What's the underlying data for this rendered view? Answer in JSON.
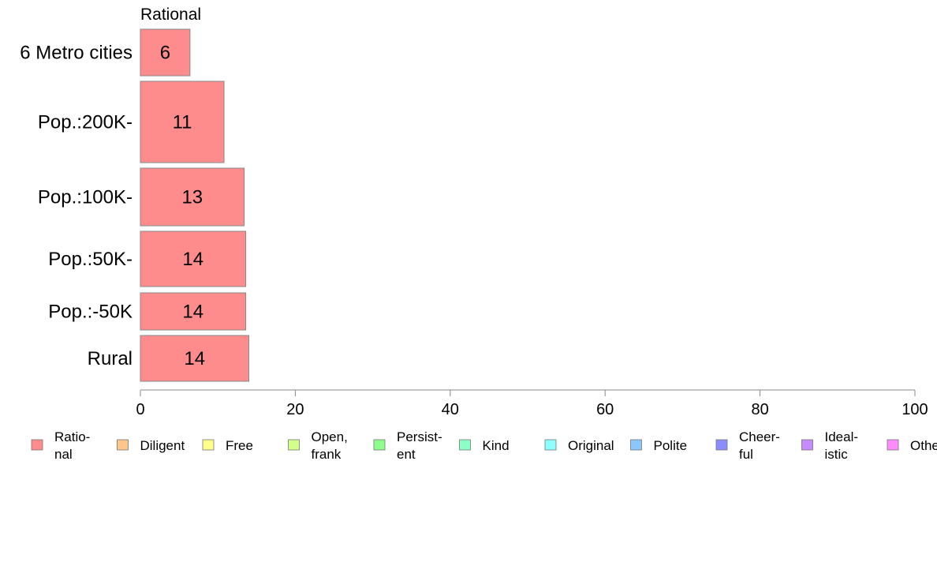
{
  "chart_data": {
    "type": "bar",
    "orientation": "horizontal",
    "series_title": "Rational",
    "categories": [
      "6 Metro cities",
      "Pop.:200K-",
      "Pop.:100K-",
      "Pop.:50K-",
      "Pop.:-50K",
      "Rural"
    ],
    "series": [
      {
        "name": "Rational",
        "values": [
          6.4,
          10.8,
          13.4,
          13.6,
          13.6,
          14.0
        ],
        "labels": [
          "6",
          "11",
          "13",
          "14",
          "14",
          "14"
        ]
      }
    ],
    "xlim": [
      0,
      100
    ],
    "xticks": [
      "0",
      "20",
      "40",
      "60",
      "80",
      "100"
    ],
    "grid": false,
    "legend_position": "bottom",
    "legend": [
      {
        "lines": [
          "Ratio-",
          "nal"
        ],
        "color": "#FF8C8C"
      },
      {
        "lines": [
          "Diligent"
        ],
        "color": "#FFC68C"
      },
      {
        "lines": [
          "Free"
        ],
        "color": "#FFFF8C"
      },
      {
        "lines": [
          "Open,",
          "frank"
        ],
        "color": "#D2FF8C"
      },
      {
        "lines": [
          "Persist-",
          "ent"
        ],
        "color": "#8CFF8C"
      },
      {
        "lines": [
          "Kind"
        ],
        "color": "#8CFFC6"
      },
      {
        "lines": [
          "Original"
        ],
        "color": "#8CFFFF"
      },
      {
        "lines": [
          "Polite"
        ],
        "color": "#8CC6FF"
      },
      {
        "lines": [
          "Cheer-",
          "ful"
        ],
        "color": "#8C8CFF"
      },
      {
        "lines": [
          "Ideal-",
          "istic"
        ],
        "color": "#C68CFF"
      },
      {
        "lines": [
          "Others"
        ],
        "color": "#FF8CFF"
      }
    ],
    "colors": {
      "bar_fill": "#FF8C8C",
      "bar_stroke": "#888888",
      "axis": "#888888"
    }
  }
}
